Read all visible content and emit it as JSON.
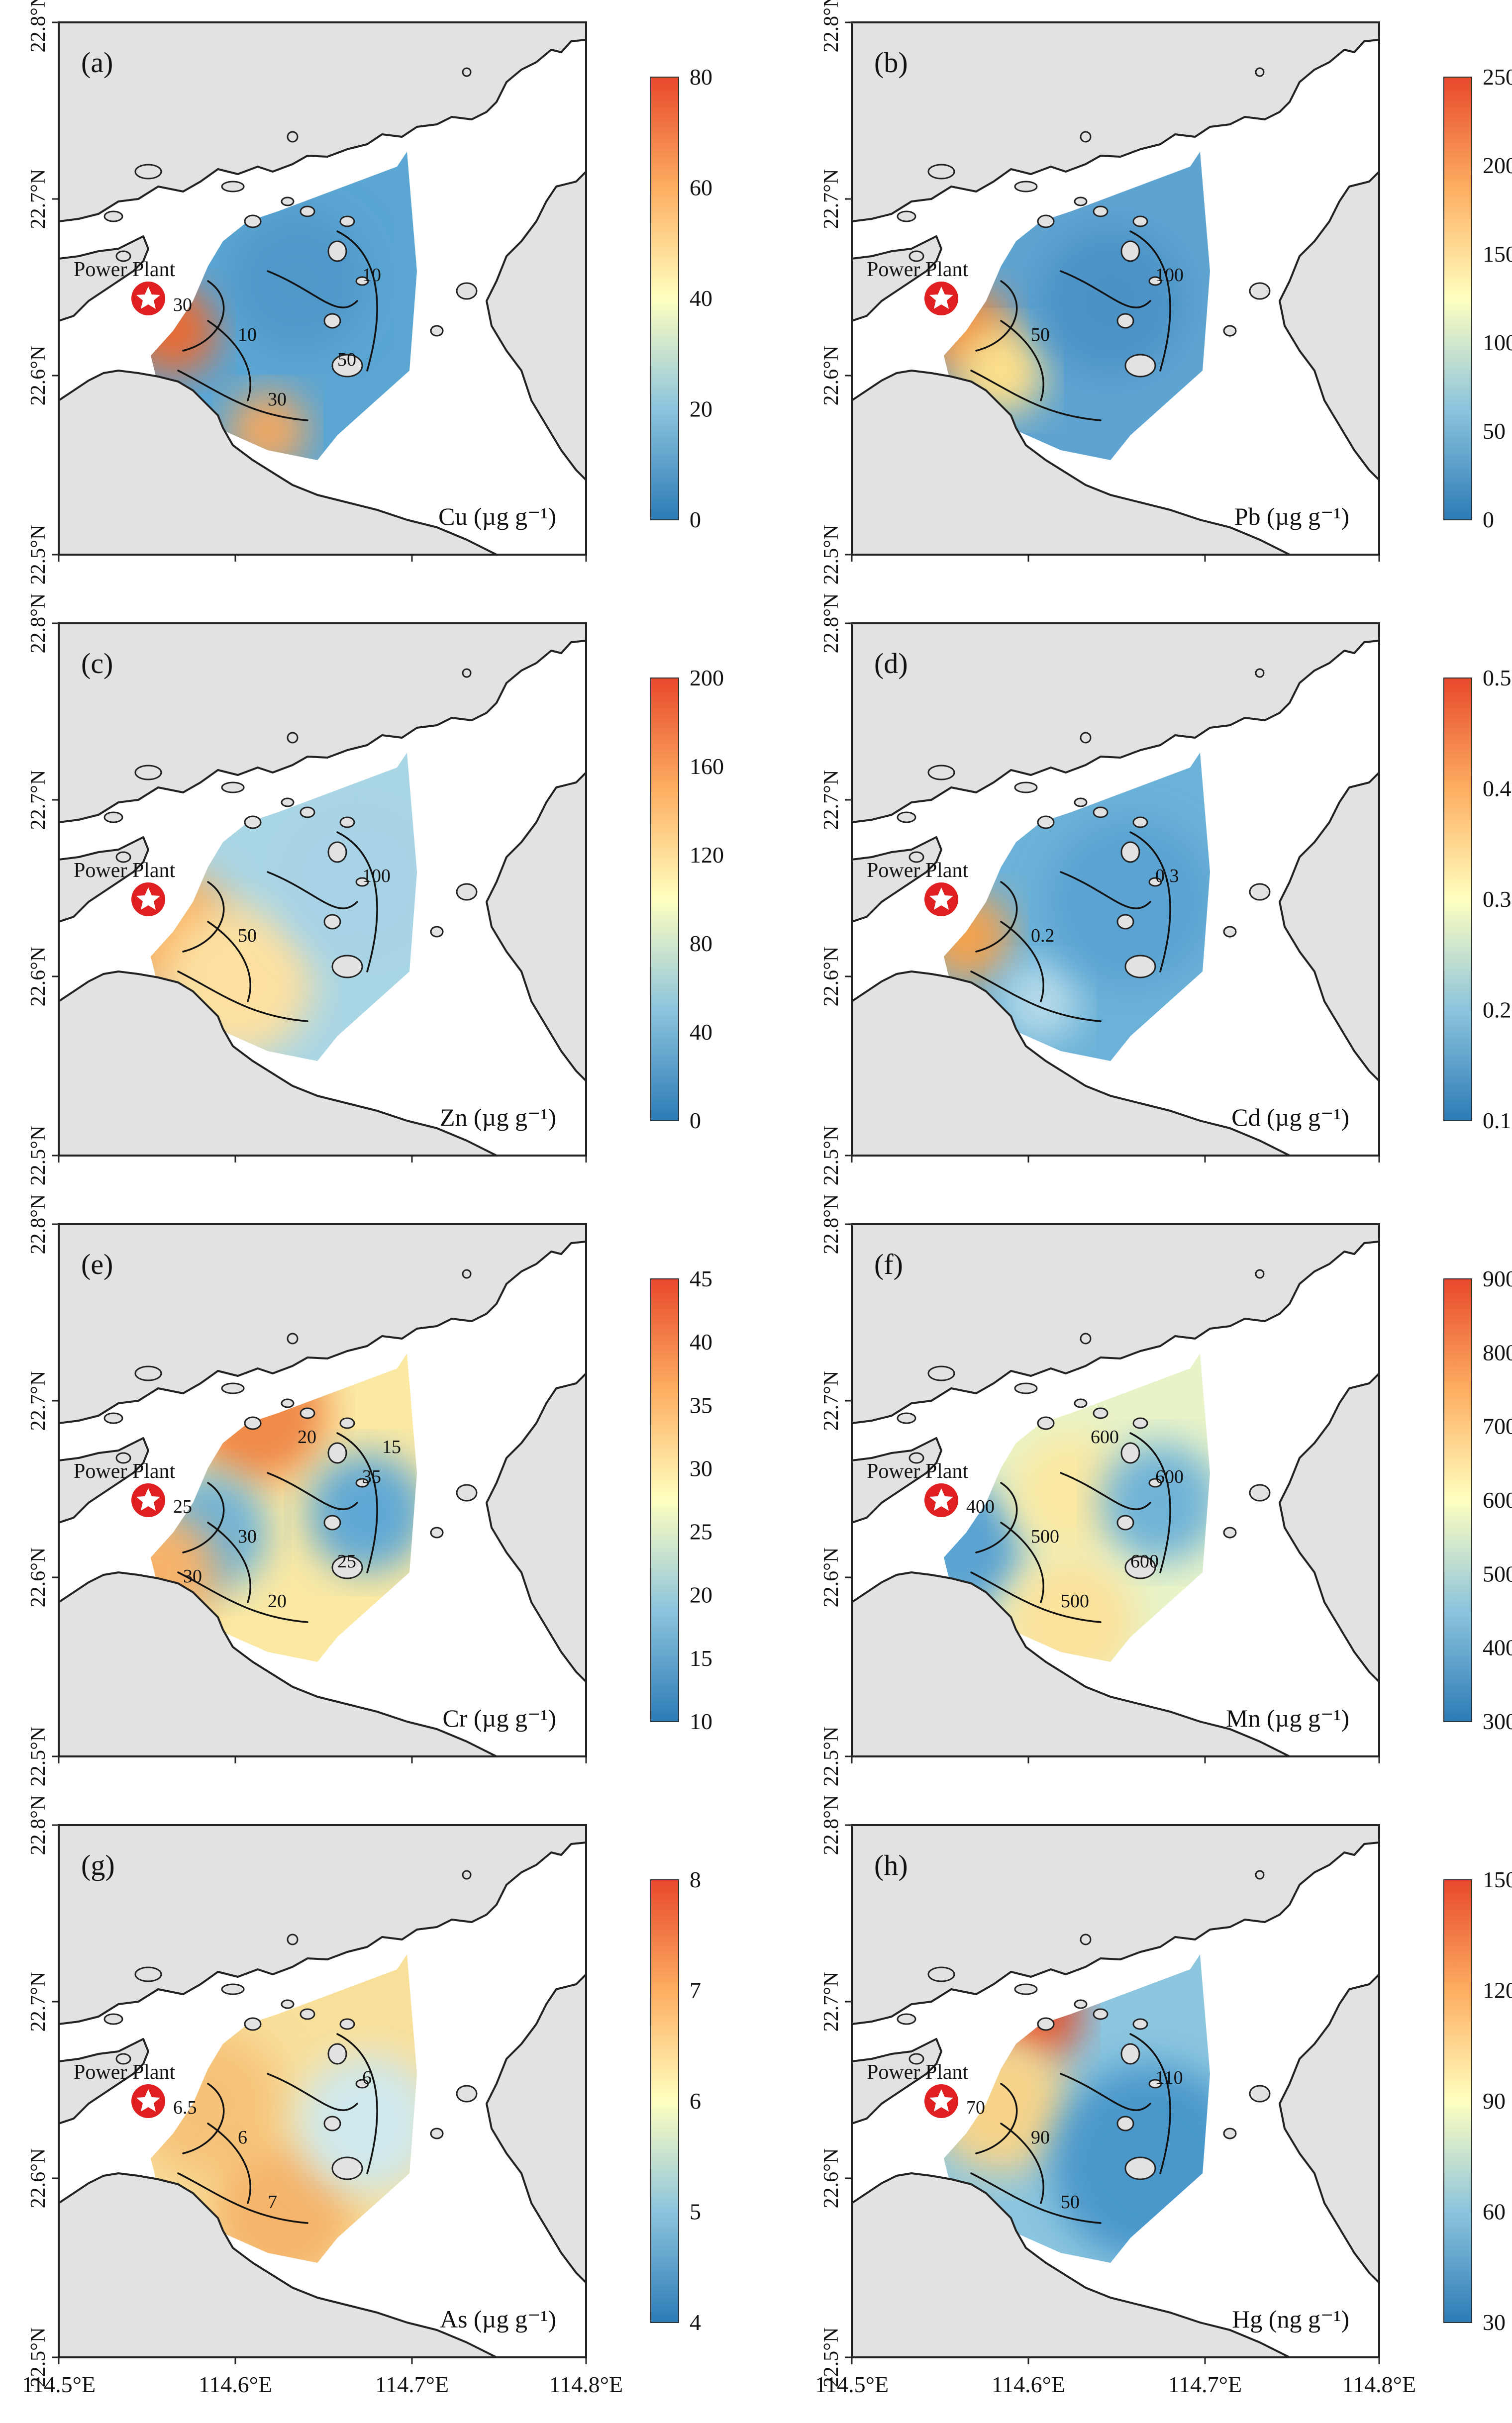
{
  "chart_data": [
    {
      "type": "heatmap",
      "label": "(a)",
      "variable": "Cu (µg g⁻¹)",
      "colorbar": {
        "min": 0,
        "max": 80,
        "ticks": [
          0,
          20,
          40,
          60,
          80
        ]
      },
      "contour_labels": [
        "10",
        "10",
        "30",
        "30",
        "50"
      ],
      "xlabel": "",
      "ylabel": ""
    },
    {
      "type": "heatmap",
      "label": "(b)",
      "variable": "Pb (µg g⁻¹)",
      "colorbar": {
        "min": 0,
        "max": 250,
        "ticks": [
          0,
          50,
          100,
          150,
          200,
          250
        ]
      },
      "contour_labels": [
        "100",
        "50"
      ]
    },
    {
      "type": "heatmap",
      "label": "(c)",
      "variable": "Zn (µg g⁻¹)",
      "colorbar": {
        "min": 0,
        "max": 200,
        "ticks": [
          0,
          40,
          80,
          120,
          160,
          200
        ]
      },
      "contour_labels": [
        "100",
        "50"
      ]
    },
    {
      "type": "heatmap",
      "label": "(d)",
      "variable": "Cd (µg g⁻¹)",
      "colorbar": {
        "min": 0.1,
        "max": 0.5,
        "ticks": [
          0.1,
          0.2,
          0.3,
          0.4,
          0.5
        ]
      },
      "contour_labels": [
        "0.3",
        "0.2"
      ]
    },
    {
      "type": "heatmap",
      "label": "(e)",
      "variable": "Cr (µg g⁻¹)",
      "colorbar": {
        "min": 10,
        "max": 45,
        "ticks": [
          10,
          15,
          20,
          25,
          30,
          35,
          40,
          45
        ]
      },
      "contour_labels": [
        "35",
        "30",
        "25",
        "20",
        "25",
        "20",
        "15",
        "30"
      ]
    },
    {
      "type": "heatmap",
      "label": "(f)",
      "variable": "Mn (µg g⁻¹)",
      "colorbar": {
        "min": 300,
        "max": 900,
        "ticks": [
          300,
          400,
          500,
          600,
          700,
          800,
          900
        ]
      },
      "contour_labels": [
        "600",
        "500",
        "400",
        "500",
        "600",
        "600"
      ]
    },
    {
      "type": "heatmap",
      "label": "(g)",
      "variable": "As (µg g⁻¹)",
      "colorbar": {
        "min": 4,
        "max": 8,
        "ticks": [
          4,
          5,
          6,
          7,
          8
        ]
      },
      "contour_labels": [
        "6",
        "6",
        "6.5",
        "7"
      ]
    },
    {
      "type": "heatmap",
      "label": "(h)",
      "variable": "Hg (ng g⁻¹)",
      "colorbar": {
        "min": 30,
        "max": 150,
        "ticks": [
          30,
          60,
          90,
          120,
          150
        ]
      },
      "contour_labels": [
        "110",
        "90",
        "70",
        "50"
      ]
    }
  ],
  "axes": {
    "y_ticks": [
      "22.5°N",
      "22.6°N",
      "22.7°N",
      "22.8°N"
    ],
    "x_ticks": [
      "114.5°E",
      "114.6°E",
      "114.7°E",
      "114.8°E"
    ]
  },
  "annotation": {
    "power_plant": "Power Plant"
  },
  "colors": {
    "scale_low": "#2c7bb6",
    "scale_mid": "#ffffbf",
    "scale_high": "#d7191c",
    "land": "#e2e2e2"
  }
}
